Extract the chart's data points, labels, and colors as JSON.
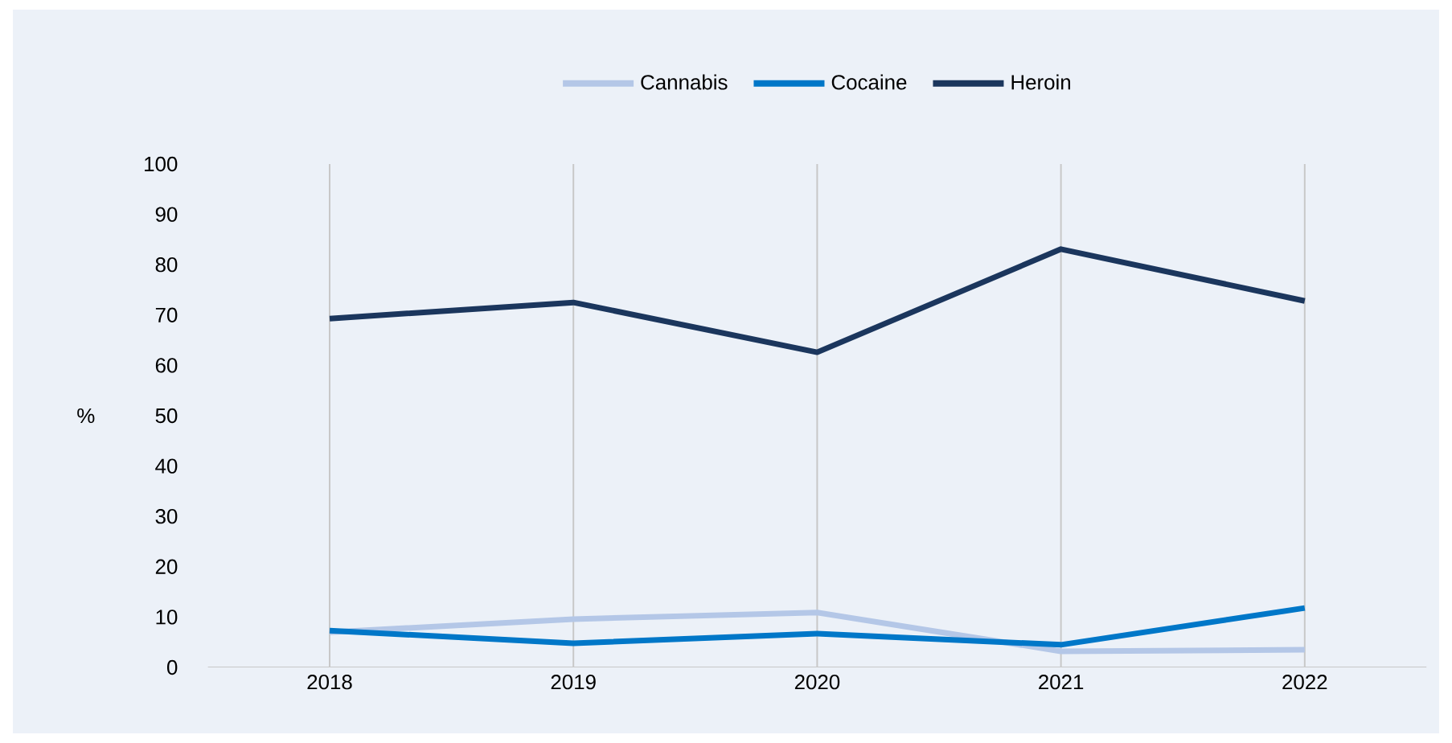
{
  "chart_data": {
    "type": "line",
    "ylabel": "%",
    "categories": [
      "2018",
      "2019",
      "2020",
      "2021",
      "2022"
    ],
    "series": [
      {
        "name": "Cannabis",
        "color": "#b4c7e7",
        "values": [
          7.0,
          9.6,
          10.9,
          3.2,
          3.5
        ]
      },
      {
        "name": "Cocaine",
        "color": "#0077c8",
        "values": [
          7.3,
          4.8,
          6.7,
          4.5,
          11.8
        ]
      },
      {
        "name": "Heroin",
        "color": "#1b365d",
        "values": [
          69.3,
          72.5,
          62.6,
          83.1,
          72.8
        ]
      }
    ],
    "ylim": [
      0,
      100
    ],
    "yticks": [
      0,
      10,
      20,
      30,
      40,
      50,
      60,
      70,
      80,
      90,
      100
    ],
    "grid": "x",
    "legend": "top",
    "marker": "none",
    "line_style": "solid"
  }
}
